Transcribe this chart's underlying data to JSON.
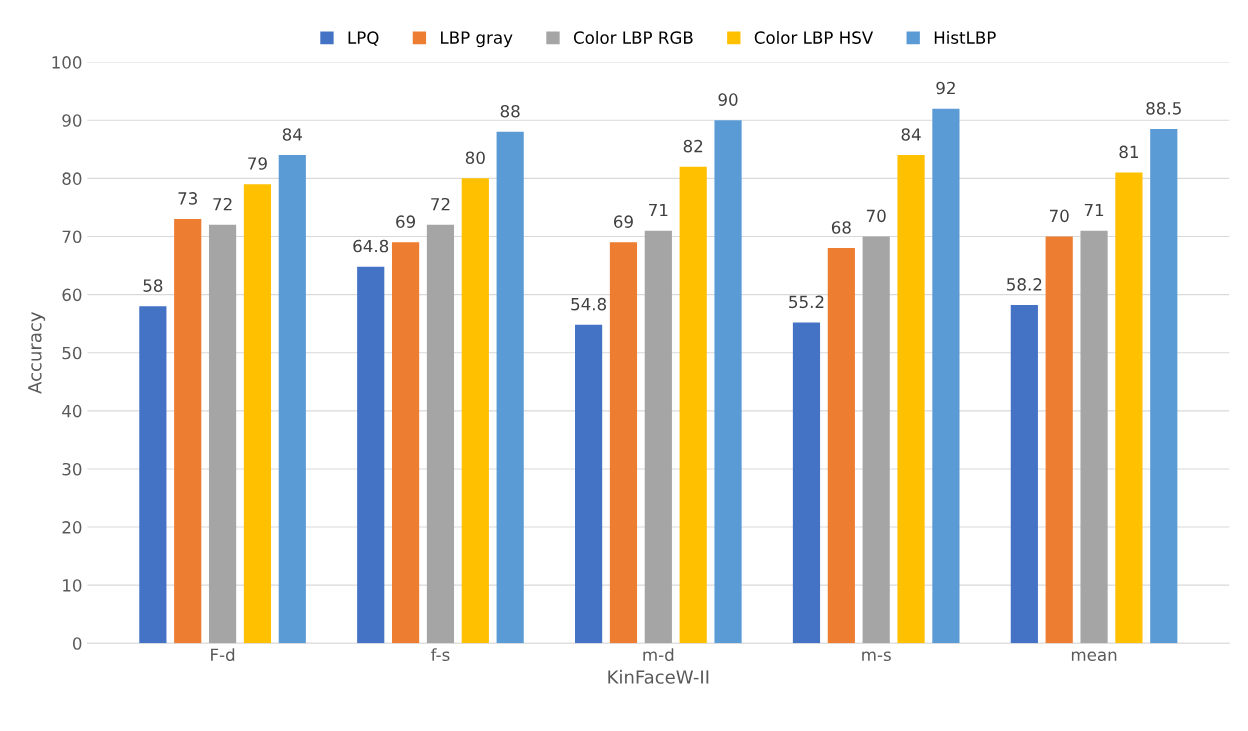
{
  "chart_data": {
    "type": "bar",
    "xlabel": "KinFaceW-II",
    "ylabel": "Accuracy",
    "categories": [
      "F-d",
      "f-s",
      "m-d",
      "m-s",
      "mean"
    ],
    "series": [
      {
        "name": "LPQ",
        "color": "#4472c4",
        "values": [
          58,
          64.8,
          54.8,
          55.2,
          58.2
        ]
      },
      {
        "name": "LBP gray",
        "color": "#ed7d31",
        "values": [
          73,
          69,
          69,
          68,
          70
        ]
      },
      {
        "name": "Color LBP RGB",
        "color": "#a5a5a5",
        "values": [
          72,
          72,
          71,
          70,
          71
        ]
      },
      {
        "name": "Color LBP HSV",
        "color": "#ffc000",
        "values": [
          79,
          80,
          82,
          84,
          81
        ]
      },
      {
        "name": "HistLBP",
        "color": "#5b9bd5",
        "values": [
          84,
          88,
          90,
          92,
          88.5
        ]
      }
    ],
    "ylim": [
      0,
      100
    ],
    "yticks": [
      0,
      10,
      20,
      30,
      40,
      50,
      60,
      70,
      80,
      90,
      100
    ],
    "grid": "y",
    "legend": "top",
    "data_labels": true
  }
}
